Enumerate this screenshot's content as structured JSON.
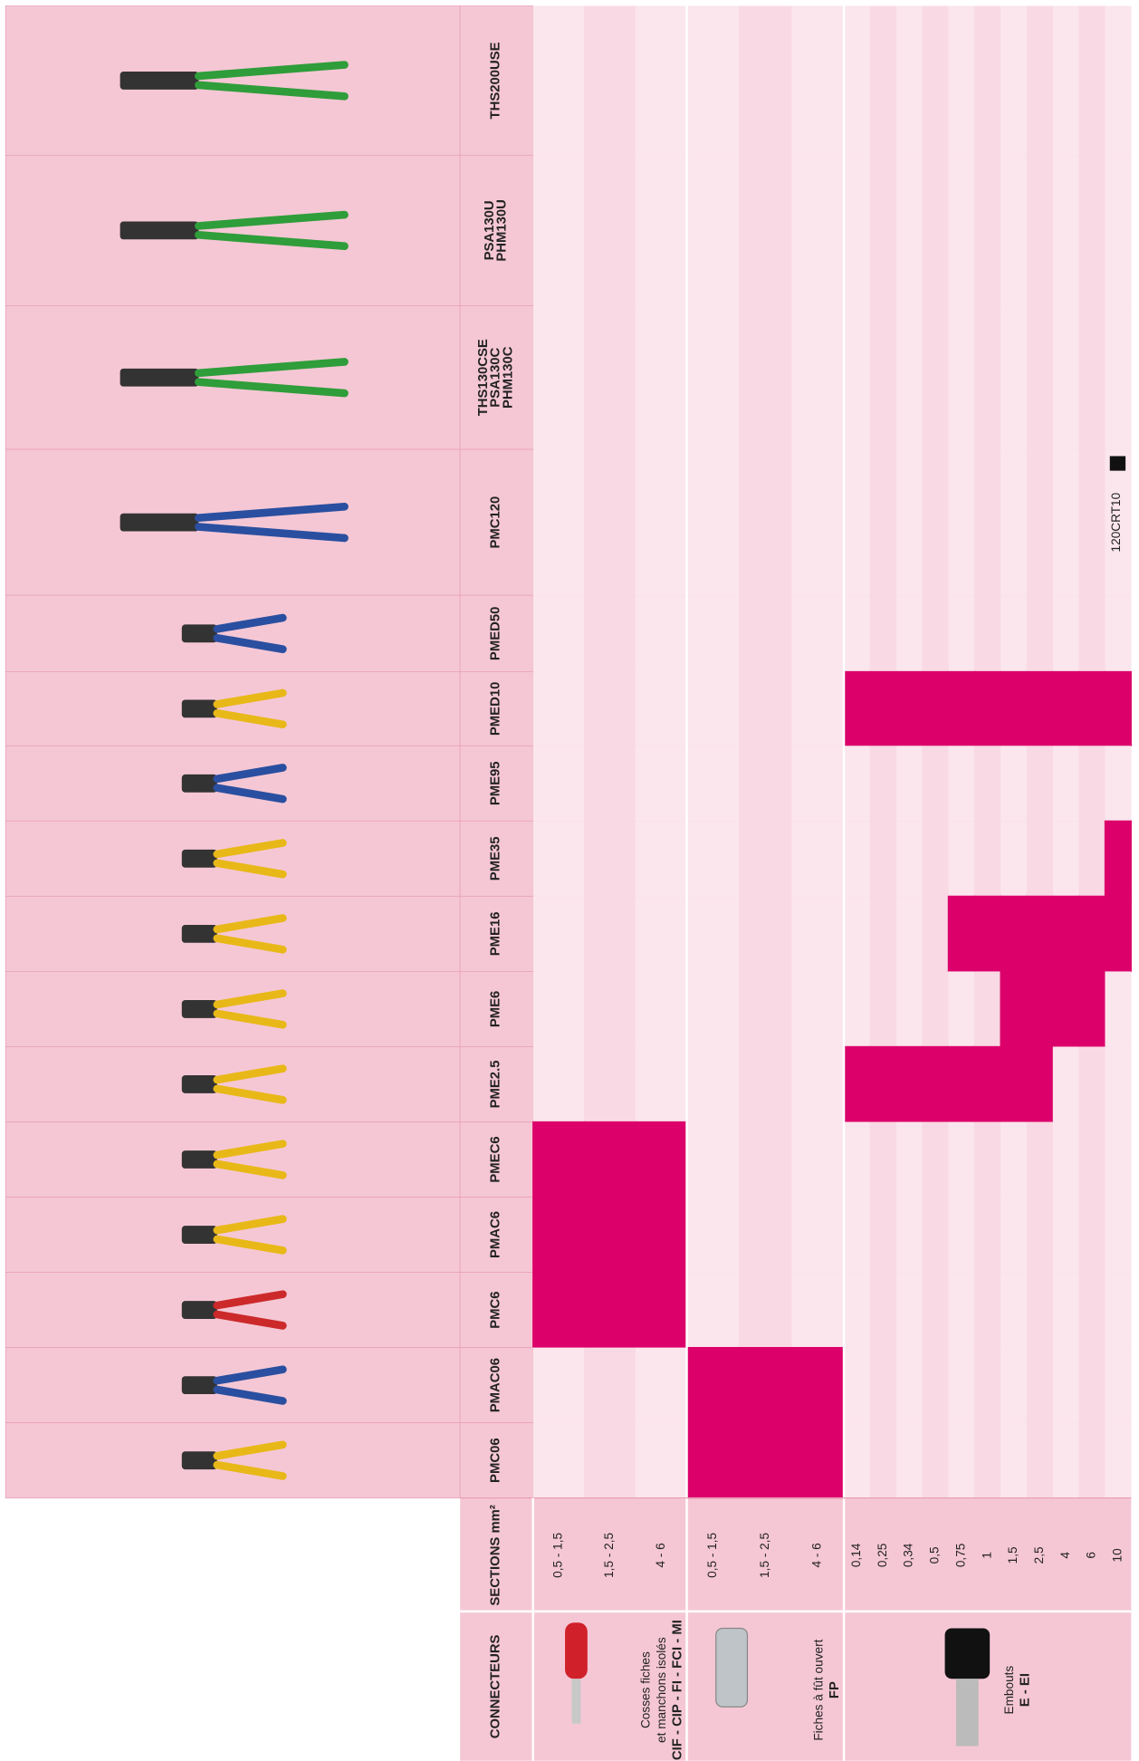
{
  "header": {
    "connecteurs": "CONNECTEURS",
    "sections": "SECTIONS mm²"
  },
  "groups": [
    {
      "label": [
        "Cosses fiches",
        "et manchons isolés"
      ],
      "code": "CIF - CIP - FI - FCI - MI",
      "sections": [
        "0,5 - 1,5",
        "1,5 - 2,5",
        "4 - 6"
      ]
    },
    {
      "label": [
        "Fiches à fût ouvert"
      ],
      "code": "FP",
      "sections": [
        "0,5 - 1,5",
        "1,5 - 2,5",
        "4 - 6"
      ]
    },
    {
      "label": [
        "Embouts"
      ],
      "code": "E - EI",
      "sections": [
        "0,14",
        "0,25",
        "0,34",
        "0,5",
        "0,75",
        "1",
        "1,5",
        "2,5",
        "4",
        "6",
        "10"
      ]
    }
  ],
  "tools": [
    {
      "name": [
        "THS200USE"
      ],
      "marks": [
        0,
        0,
        0,
        0,
        0,
        0,
        0,
        0,
        0,
        0,
        0,
        0,
        0,
        0,
        0,
        0,
        0
      ]
    },
    {
      "name": [
        "PSA130U",
        "PHM130U"
      ],
      "marks": [
        0,
        0,
        0,
        0,
        0,
        0,
        0,
        0,
        0,
        0,
        0,
        0,
        0,
        0,
        0,
        0,
        0
      ]
    },
    {
      "name": [
        "THS130CSE",
        "PSA130C",
        "PHM130C"
      ],
      "marks": [
        0,
        0,
        0,
        0,
        0,
        0,
        0,
        0,
        0,
        0,
        0,
        0,
        0,
        0,
        0,
        0,
        0
      ]
    },
    {
      "name": [
        "PMC120"
      ],
      "marks": [
        0,
        0,
        0,
        0,
        0,
        0,
        0,
        0,
        0,
        0,
        0,
        0,
        0,
        0,
        0,
        0,
        0
      ],
      "note": "120CRT10"
    },
    {
      "name": [
        "PMED50"
      ],
      "marks": [
        0,
        0,
        0,
        0,
        0,
        0,
        0,
        0,
        0,
        0,
        0,
        0,
        0,
        0,
        0,
        0,
        0
      ]
    },
    {
      "name": [
        "PMED10"
      ],
      "marks": [
        0,
        0,
        0,
        0,
        0,
        0,
        1,
        1,
        1,
        1,
        1,
        1,
        1,
        1,
        1,
        1,
        1
      ]
    },
    {
      "name": [
        "PME95"
      ],
      "marks": [
        0,
        0,
        0,
        0,
        0,
        0,
        0,
        0,
        0,
        0,
        0,
        0,
        0,
        0,
        0,
        0,
        0
      ]
    },
    {
      "name": [
        "PME35"
      ],
      "marks": [
        0,
        0,
        0,
        0,
        0,
        0,
        0,
        0,
        0,
        0,
        0,
        0,
        0,
        0,
        0,
        0,
        1
      ]
    },
    {
      "name": [
        "PME16"
      ],
      "marks": [
        0,
        0,
        0,
        0,
        0,
        0,
        0,
        0,
        0,
        0,
        1,
        1,
        1,
        1,
        1,
        1,
        1
      ]
    },
    {
      "name": [
        "PME6"
      ],
      "marks": [
        0,
        0,
        0,
        0,
        0,
        0,
        0,
        0,
        0,
        0,
        0,
        0,
        1,
        1,
        1,
        1,
        0
      ]
    },
    {
      "name": [
        "PME2.5"
      ],
      "marks": [
        0,
        0,
        0,
        0,
        0,
        0,
        1,
        1,
        1,
        1,
        1,
        1,
        1,
        1,
        0,
        0,
        0
      ]
    },
    {
      "name": [
        "PMEC6"
      ],
      "marks": [
        1,
        1,
        1,
        0,
        0,
        0,
        0,
        0,
        0,
        0,
        0,
        0,
        0,
        0,
        0,
        0,
        0
      ]
    },
    {
      "name": [
        "PMAC6"
      ],
      "marks": [
        1,
        1,
        1,
        0,
        0,
        0,
        0,
        0,
        0,
        0,
        0,
        0,
        0,
        0,
        0,
        0,
        0
      ]
    },
    {
      "name": [
        "PMC6"
      ],
      "marks": [
        1,
        1,
        1,
        0,
        0,
        0,
        0,
        0,
        0,
        0,
        0,
        0,
        0,
        0,
        0,
        0,
        0
      ]
    },
    {
      "name": [
        "PMAC06"
      ],
      "marks": [
        0,
        0,
        0,
        1,
        1,
        1,
        0,
        0,
        0,
        0,
        0,
        0,
        0,
        0,
        0,
        0,
        0
      ]
    },
    {
      "name": [
        "PMC06"
      ],
      "marks": [
        0,
        0,
        0,
        1,
        1,
        1,
        0,
        0,
        0,
        0,
        0,
        0,
        0,
        0,
        0,
        0,
        0
      ]
    }
  ]
}
